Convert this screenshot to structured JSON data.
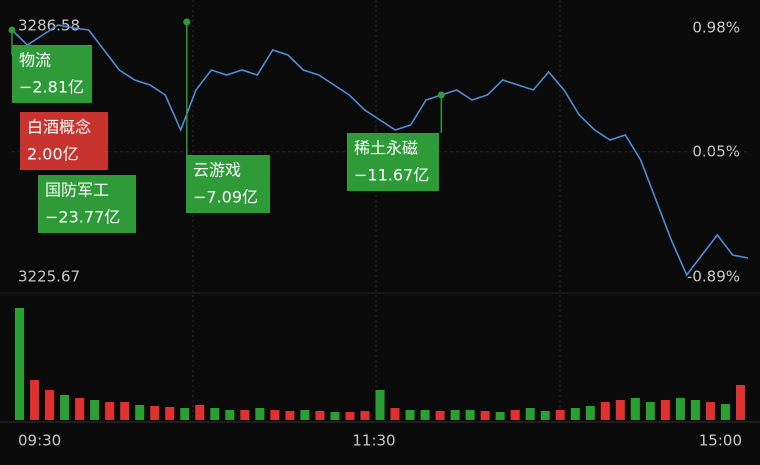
{
  "chart_data": [
    {
      "type": "line",
      "color": "#4f8fd6",
      "x": [
        0,
        5,
        10,
        15,
        20,
        25,
        30,
        35,
        40,
        45,
        50,
        55,
        60,
        65,
        70,
        75,
        80,
        85,
        90,
        95,
        100,
        105,
        110,
        115,
        120,
        125,
        130,
        135,
        140,
        145,
        150,
        155,
        160,
        165,
        170,
        175,
        180,
        185,
        190,
        195,
        200,
        205,
        210,
        215,
        220,
        225,
        230,
        235,
        240
      ],
      "values": [
        3284.71,
        3281.21,
        3283.55,
        3285.88,
        3285.18,
        3284.71,
        3280.05,
        3275.38,
        3273.04,
        3271.88,
        3269.54,
        3261.38,
        3270.71,
        3275.38,
        3274.21,
        3275.38,
        3274.21,
        3280.05,
        3278.88,
        3275.38,
        3274.21,
        3271.88,
        3269.54,
        3266.04,
        3263.71,
        3261.38,
        3262.54,
        3268.38,
        3269.54,
        3270.71,
        3268.38,
        3269.54,
        3273.04,
        3271.88,
        3270.71,
        3274.91,
        3270.71,
        3264.88,
        3261.38,
        3259.04,
        3260.21,
        3254.37,
        3245.04,
        3235.71,
        3227.54,
        3232.2,
        3236.87,
        3232.2,
        3231.5
      ],
      "xlim": [
        0,
        240
      ],
      "xticks": [
        {
          "value": 0,
          "label": "09:30"
        },
        {
          "value": 120,
          "label": "11:30"
        },
        {
          "value": 240,
          "label": "15:00"
        }
      ],
      "ylim": [
        3225.67,
        3286.58
      ],
      "yticks": [
        {
          "value": 3286.58,
          "label": "3286.58"
        },
        {
          "value": 3225.67,
          "label": "3225.67"
        }
      ],
      "y2lim": [
        -0.89,
        0.98
      ],
      "y2ticks": [
        {
          "value": 0.98,
          "label": "0.98%"
        },
        {
          "value": 0.05,
          "label": "0.05%"
        },
        {
          "value": -0.89,
          "label": "-0.89%"
        }
      ],
      "annotations": [
        {
          "x": 0,
          "text": "物流",
          "value_label": "−2.81亿",
          "color": "#2e9a38"
        },
        {
          "x": 0,
          "text": "白酒概念",
          "value_label": "2.00亿",
          "color": "#c8332e"
        },
        {
          "x": 0,
          "text": "国防军工",
          "value_label": "−23.77亿",
          "color": "#2e9a38"
        },
        {
          "x": 57,
          "text": "云游戏",
          "value_label": "−7.09亿",
          "color": "#2e9a38"
        },
        {
          "x": 140,
          "text": "稀土永磁",
          "value_label": "−11.67亿",
          "color": "#2e9a38"
        }
      ]
    },
    {
      "type": "bar",
      "values": [
        112,
        40,
        30,
        25,
        22,
        20,
        18,
        18,
        15,
        14,
        13,
        12,
        15,
        12,
        10,
        10,
        12,
        10,
        9,
        10,
        9,
        8,
        8,
        9,
        30,
        12,
        10,
        10,
        9,
        10,
        10,
        9,
        8,
        10,
        12,
        9,
        10,
        12,
        14,
        18,
        20,
        22,
        18,
        20,
        22,
        20,
        18,
        16,
        35
      ],
      "colors": [
        "#2aa033",
        "#e0302f",
        "#e0302f",
        "#2aa033",
        "#e0302f",
        "#2aa033",
        "#e0302f",
        "#e0302f",
        "#2aa033",
        "#e0302f",
        "#e0302f",
        "#2aa033",
        "#e0302f",
        "#2aa033",
        "#2aa033",
        "#e0302f",
        "#2aa033",
        "#e0302f",
        "#e0302f",
        "#2aa033",
        "#e0302f",
        "#2aa033",
        "#e0302f",
        "#e0302f",
        "#2aa033",
        "#e0302f",
        "#2aa033",
        "#2aa033",
        "#e0302f",
        "#2aa033",
        "#2aa033",
        "#e0302f",
        "#2aa033",
        "#e0302f",
        "#2aa033",
        "#2aa033",
        "#e0302f",
        "#2aa033",
        "#2aa033",
        "#e0302f",
        "#e0302f",
        "#2aa033",
        "#2aa033",
        "#e0302f",
        "#2aa033",
        "#2aa033",
        "#e0302f",
        "#2aa033",
        "#e0302f"
      ],
      "ylim": [
        0,
        120
      ]
    }
  ]
}
